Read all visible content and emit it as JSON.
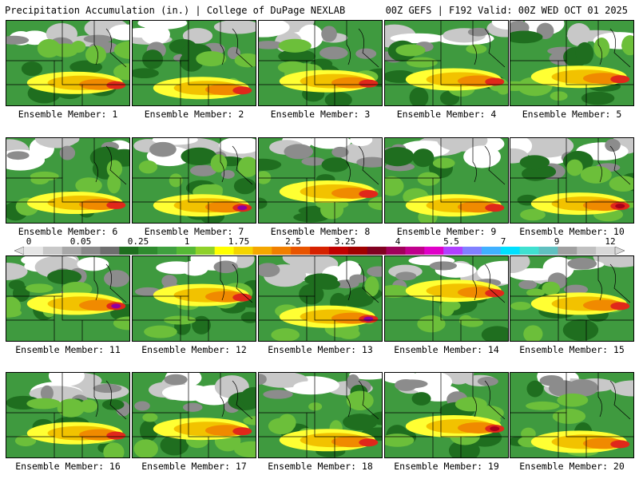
{
  "header": {
    "title": "Precipitation Accumulation (in.) | College of DuPage NEXLAB",
    "run_info": "00Z GEFS | F192 Valid: 00Z WED OCT 01 2025"
  },
  "colorbar": {
    "tick_labels": [
      "0",
      "0.05",
      "0.25",
      "1",
      "1.75",
      "2.5",
      "3.25",
      "4",
      "5.5",
      "7",
      "9",
      "12"
    ],
    "colors": [
      "#e6e6e6",
      "#c8c8c8",
      "#a8a8a8",
      "#8a8a8a",
      "#6e6e6e",
      "#1e6e1e",
      "#2e8b2e",
      "#3fa03f",
      "#55b835",
      "#8fd12a",
      "#ffff00",
      "#f4d400",
      "#f4a700",
      "#f07f00",
      "#e85400",
      "#d62200",
      "#c00000",
      "#a00000",
      "#800020",
      "#a0005a",
      "#c0008c",
      "#e000c8",
      "#b040ff",
      "#8080ff",
      "#40b0ff",
      "#00e0ff",
      "#40e0d0",
      "#60c0c0",
      "#a0a0a0",
      "#c0c0c0",
      "#d8d8d8"
    ]
  },
  "palette": {
    "white": "#ffffff",
    "lightgray": "#c8c8c8",
    "gray": "#8c8c8c",
    "darkgreen": "#1f6e1f",
    "green": "#3f9a3f",
    "lightgreen": "#6cbf3a",
    "yellow": "#ffff33",
    "gold": "#f2c200",
    "orange": "#f08a00",
    "red": "#e0281a",
    "darkred": "#a8001a",
    "purple": "#9000a0"
  },
  "panels": [
    {
      "label": "Ensemble Member: 1"
    },
    {
      "label": "Ensemble Member: 2"
    },
    {
      "label": "Ensemble Member: 3"
    },
    {
      "label": "Ensemble Member: 4"
    },
    {
      "label": "Ensemble Member: 5"
    },
    {
      "label": "Ensemble Member: 6"
    },
    {
      "label": "Ensemble Member: 7"
    },
    {
      "label": "Ensemble Member: 8"
    },
    {
      "label": "Ensemble Member: 9"
    },
    {
      "label": "Ensemble Member: 10"
    },
    {
      "label": "Ensemble Member: 11"
    },
    {
      "label": "Ensemble Member: 12"
    },
    {
      "label": "Ensemble Member: 13"
    },
    {
      "label": "Ensemble Member: 14"
    },
    {
      "label": "Ensemble Member: 15"
    },
    {
      "label": "Ensemble Member: 16"
    },
    {
      "label": "Ensemble Member: 17"
    },
    {
      "label": "Ensemble Member: 18"
    },
    {
      "label": "Ensemble Member: 19"
    },
    {
      "label": "Ensemble Member: 20"
    }
  ]
}
